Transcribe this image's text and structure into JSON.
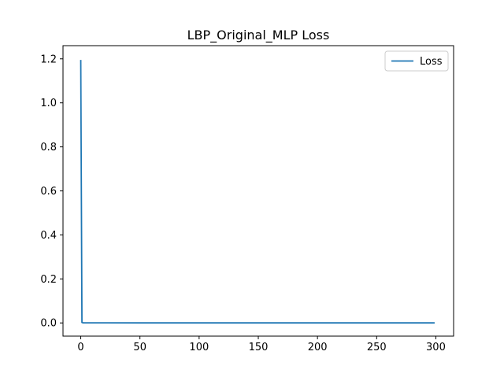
{
  "chart_data": {
    "type": "line",
    "title": "LBP_Original_MLP Loss",
    "xlabel": "",
    "ylabel": "",
    "xlim": [
      -15,
      315
    ],
    "ylim": [
      -0.06,
      1.26
    ],
    "xticks": [
      0,
      50,
      100,
      150,
      200,
      250,
      300
    ],
    "yticks": [
      0.0,
      0.2,
      0.4,
      0.6,
      0.8,
      1.0,
      1.2
    ],
    "grid": false,
    "legend_position": "top-right",
    "series": [
      {
        "name": "Loss",
        "color": "#1f77b4",
        "x": [
          0,
          1,
          2,
          5,
          10,
          20,
          50,
          100,
          150,
          200,
          250,
          299
        ],
        "y": [
          1.195,
          0.002,
          0.0005,
          0.0004,
          0.0003,
          0.0003,
          0.0002,
          0.0002,
          0.0002,
          0.0002,
          0.0002,
          0.0002
        ]
      }
    ]
  }
}
